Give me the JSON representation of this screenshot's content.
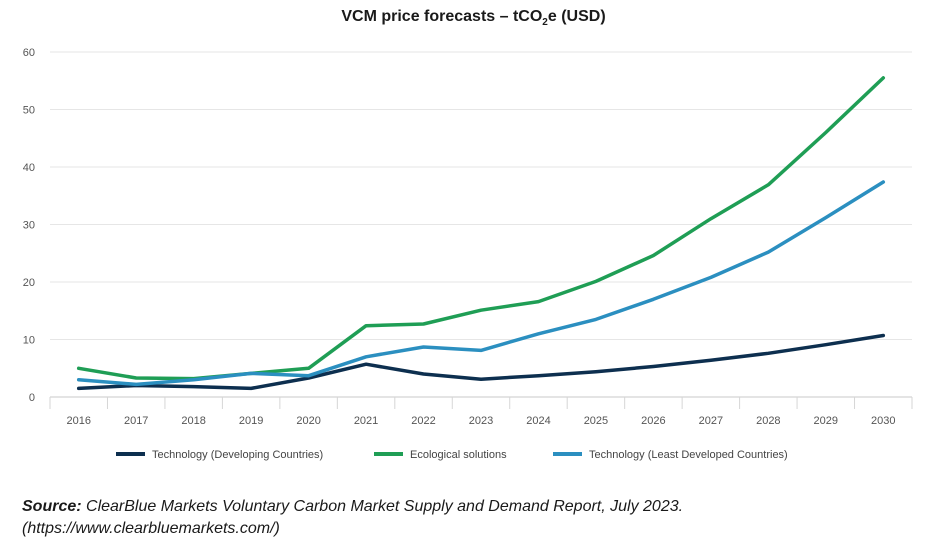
{
  "title": {
    "prefix": "VCM price forecasts – tCO",
    "subscript": "2",
    "suffix": "e (USD)"
  },
  "source": {
    "label": "Source:",
    "text": " ClearBlue Markets Voluntary Carbon Market Supply and Demand Report, July 2023.",
    "url": "(https://www.clearbluemarkets.com/)"
  },
  "chart_data": {
    "type": "line",
    "title": "VCM price forecasts – tCO2e (USD)",
    "xlabel": "",
    "ylabel": "",
    "ylim": [
      0,
      60
    ],
    "yticks": [
      0,
      10,
      20,
      30,
      40,
      50,
      60
    ],
    "grid": true,
    "legend_position": "bottom",
    "x": [
      "2016",
      "2017",
      "2018",
      "2019",
      "2020",
      "2021",
      "2022",
      "2023",
      "2024",
      "2025",
      "2026",
      "2027",
      "2028",
      "2029",
      "2030"
    ],
    "series": [
      {
        "name": "Technology (Developing Countries)",
        "color": "#0d2f4f",
        "values": [
          1.5,
          2.0,
          1.8,
          1.5,
          3.3,
          5.7,
          4.0,
          3.1,
          3.7,
          4.4,
          5.3,
          6.4,
          7.6,
          9.1,
          10.7
        ]
      },
      {
        "name": "Ecological solutions",
        "color": "#1f9e55",
        "values": [
          5.0,
          3.3,
          3.2,
          4.1,
          5.0,
          12.4,
          12.7,
          15.1,
          16.6,
          20.1,
          24.6,
          31.0,
          36.9,
          46.0,
          55.5
        ]
      },
      {
        "name": "Technology (Least Developed Countries)",
        "color": "#2b8fc0",
        "values": [
          3.0,
          2.2,
          3.0,
          4.1,
          3.7,
          7.0,
          8.7,
          8.1,
          11.0,
          13.5,
          17.0,
          20.8,
          25.2,
          31.2,
          37.4
        ]
      }
    ]
  }
}
